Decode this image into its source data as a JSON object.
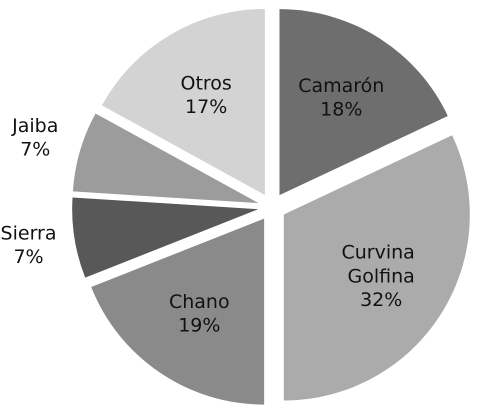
{
  "chart_data": {
    "type": "pie",
    "categories": [
      "Camarón",
      "Curvina Golfina",
      "Chano",
      "Sierra",
      "Jaiba",
      "Otros"
    ],
    "values": [
      18,
      32,
      19,
      7,
      7,
      17
    ],
    "value_labels": [
      "18%",
      "32%",
      "19%",
      "7%",
      "7%",
      "17%"
    ],
    "colors": [
      "#6e6e6e",
      "#ababab",
      "#8a8a8a",
      "#585858",
      "#9c9c9c",
      "#d3d3d3"
    ]
  }
}
